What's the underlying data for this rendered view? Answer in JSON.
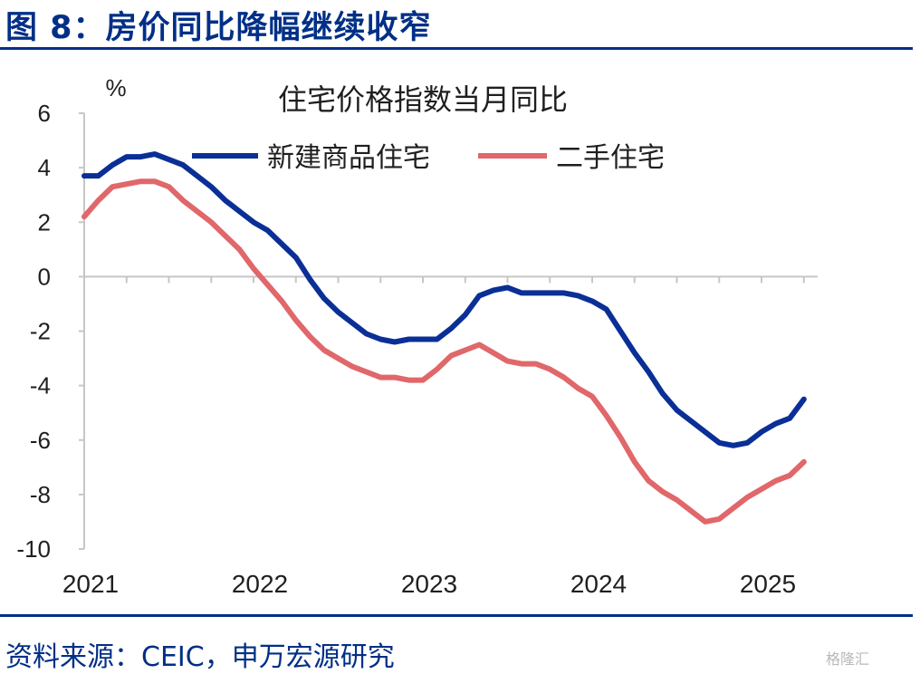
{
  "figure": {
    "title": "图 8：房价同比降幅继续收窄",
    "source": "资料来源：CEIC，申万宏源研究",
    "watermark": "格隆汇"
  },
  "colors": {
    "header": "#002f87",
    "new_home": "#0a2f96",
    "second_hand": "#e0676a",
    "axis": "#c6c6c6",
    "text": "#1f1f1f"
  },
  "chart_data": {
    "type": "line",
    "title": "住宅价格指数当月同比",
    "unit": "%",
    "ylim": [
      -10,
      6
    ],
    "yticks": [
      "6",
      "4",
      "2",
      "0",
      "-2",
      "-4",
      "-6",
      "-8",
      "-10"
    ],
    "xticks": [
      "2021",
      "2022",
      "2023",
      "2024",
      "2025"
    ],
    "grid": false,
    "legend_position": "top",
    "x": [
      "2021-01",
      "2021-02",
      "2021-03",
      "2021-04",
      "2021-05",
      "2021-06",
      "2021-07",
      "2021-08",
      "2021-09",
      "2021-10",
      "2021-11",
      "2021-12",
      "2022-01",
      "2022-02",
      "2022-03",
      "2022-04",
      "2022-05",
      "2022-06",
      "2022-07",
      "2022-08",
      "2022-09",
      "2022-10",
      "2022-11",
      "2022-12",
      "2023-01",
      "2023-02",
      "2023-03",
      "2023-04",
      "2023-05",
      "2023-06",
      "2023-07",
      "2023-08",
      "2023-09",
      "2023-10",
      "2023-11",
      "2023-12",
      "2024-01",
      "2024-02",
      "2024-03",
      "2024-04",
      "2024-05",
      "2024-06",
      "2024-07",
      "2024-08",
      "2024-09",
      "2024-10",
      "2024-11",
      "2024-12",
      "2025-01",
      "2025-02",
      "2025-03",
      "2025-04"
    ],
    "series": [
      {
        "name": "新建商品住宅",
        "values": [
          3.7,
          3.7,
          4.1,
          4.4,
          4.4,
          4.5,
          4.3,
          4.1,
          3.7,
          3.3,
          2.8,
          2.4,
          2.0,
          1.7,
          1.2,
          0.7,
          -0.1,
          -0.8,
          -1.3,
          -1.7,
          -2.1,
          -2.3,
          -2.4,
          -2.3,
          -2.3,
          -2.3,
          -1.9,
          -1.4,
          -0.7,
          -0.5,
          -0.4,
          -0.6,
          -0.6,
          -0.6,
          -0.6,
          -0.7,
          -0.9,
          -1.2,
          -2.0,
          -2.8,
          -3.5,
          -4.3,
          -4.9,
          -5.3,
          -5.7,
          -6.1,
          -6.2,
          -6.1,
          -5.7,
          -5.4,
          -5.2,
          -4.5
        ]
      },
      {
        "name": "二手住宅",
        "values": [
          2.2,
          2.8,
          3.3,
          3.4,
          3.5,
          3.5,
          3.3,
          2.8,
          2.4,
          2.0,
          1.5,
          1.0,
          0.3,
          -0.3,
          -0.9,
          -1.6,
          -2.2,
          -2.7,
          -3.0,
          -3.3,
          -3.5,
          -3.7,
          -3.7,
          -3.8,
          -3.8,
          -3.4,
          -2.9,
          -2.7,
          -2.5,
          -2.8,
          -3.1,
          -3.2,
          -3.2,
          -3.4,
          -3.7,
          -4.1,
          -4.4,
          -5.1,
          -5.9,
          -6.8,
          -7.5,
          -7.9,
          -8.2,
          -8.6,
          -9.0,
          -8.9,
          -8.5,
          -8.1,
          -7.8,
          -7.5,
          -7.3,
          -6.8
        ]
      }
    ]
  }
}
